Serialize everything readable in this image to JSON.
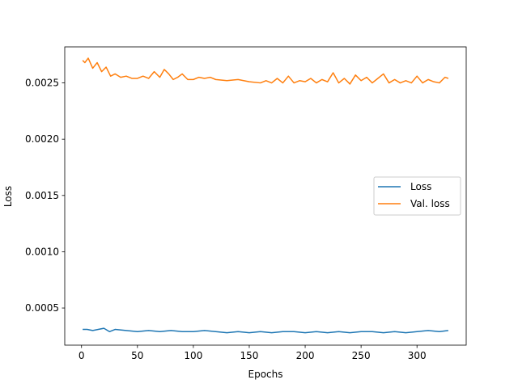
{
  "chart_data": {
    "type": "line",
    "title": "",
    "xlabel": "Epochs",
    "ylabel": "Loss",
    "xlim": [
      -15,
      344
    ],
    "ylim": [
      0.00017,
      0.00282
    ],
    "xticks": [
      0,
      50,
      100,
      150,
      200,
      250,
      300
    ],
    "xtick_labels": [
      "0",
      "50",
      "100",
      "150",
      "200",
      "250",
      "300"
    ],
    "yticks": [
      0.0005,
      0.001,
      0.0015,
      0.002,
      0.0025
    ],
    "ytick_labels": [
      "0.0005",
      "0.0010",
      "0.0015",
      "0.0020",
      "0.0025"
    ],
    "grid": false,
    "legend_position": "center-right",
    "series": [
      {
        "name": "Loss",
        "color": "#1f77b4",
        "x": [
          1,
          5,
          10,
          15,
          20,
          25,
          30,
          40,
          50,
          60,
          70,
          80,
          90,
          100,
          110,
          120,
          130,
          140,
          150,
          160,
          170,
          180,
          190,
          200,
          210,
          220,
          230,
          240,
          250,
          260,
          270,
          280,
          290,
          300,
          310,
          320,
          328
        ],
        "y": [
          0.00031,
          0.00031,
          0.0003,
          0.00031,
          0.00032,
          0.00029,
          0.00031,
          0.0003,
          0.00029,
          0.0003,
          0.00029,
          0.0003,
          0.00029,
          0.00029,
          0.0003,
          0.00029,
          0.00028,
          0.00029,
          0.00028,
          0.00029,
          0.00028,
          0.00029,
          0.00029,
          0.00028,
          0.00029,
          0.00028,
          0.00029,
          0.00028,
          0.00029,
          0.00029,
          0.00028,
          0.00029,
          0.00028,
          0.00029,
          0.0003,
          0.00029,
          0.0003
        ]
      },
      {
        "name": "Val. loss",
        "color": "#ff7f0e",
        "x": [
          1,
          3,
          6,
          10,
          14,
          18,
          22,
          26,
          30,
          35,
          40,
          45,
          50,
          55,
          60,
          65,
          70,
          74,
          78,
          82,
          86,
          90,
          95,
          100,
          105,
          110,
          115,
          120,
          130,
          140,
          150,
          160,
          165,
          170,
          175,
          180,
          185,
          190,
          195,
          200,
          205,
          210,
          215,
          220,
          225,
          230,
          235,
          240,
          245,
          250,
          255,
          260,
          265,
          270,
          275,
          280,
          285,
          290,
          295,
          300,
          305,
          310,
          315,
          320,
          325,
          328
        ],
        "y": [
          0.0027,
          0.00268,
          0.00272,
          0.00263,
          0.00268,
          0.0026,
          0.00264,
          0.00256,
          0.00258,
          0.00255,
          0.00256,
          0.00254,
          0.00254,
          0.00256,
          0.00254,
          0.0026,
          0.00255,
          0.00262,
          0.00258,
          0.00253,
          0.00255,
          0.00258,
          0.00253,
          0.00253,
          0.00255,
          0.00254,
          0.00255,
          0.00253,
          0.00252,
          0.00253,
          0.00251,
          0.0025,
          0.00252,
          0.0025,
          0.00254,
          0.0025,
          0.00256,
          0.0025,
          0.00252,
          0.00251,
          0.00254,
          0.0025,
          0.00253,
          0.00251,
          0.00259,
          0.0025,
          0.00254,
          0.00249,
          0.00257,
          0.00252,
          0.00255,
          0.0025,
          0.00254,
          0.00258,
          0.0025,
          0.00253,
          0.0025,
          0.00252,
          0.0025,
          0.00256,
          0.0025,
          0.00253,
          0.00251,
          0.0025,
          0.00255,
          0.00254
        ]
      }
    ]
  }
}
